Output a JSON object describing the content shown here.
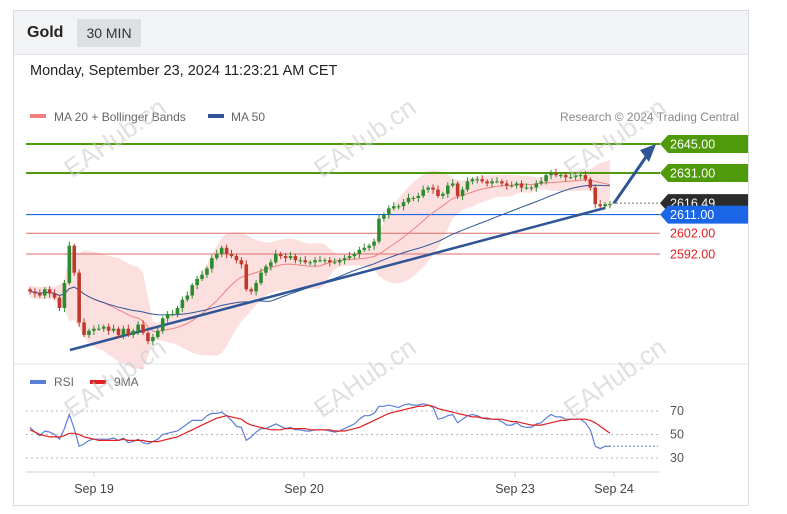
{
  "header": {
    "symbol": "Gold",
    "timeframe": "30 MIN"
  },
  "datetime": "Monday, September 23, 2024 11:23:21 AM CET",
  "legend_main": [
    {
      "label": "MA 20 + Bollinger Bands",
      "color": "#f08080"
    },
    {
      "label": "MA 50",
      "color": "#2f5597"
    }
  ],
  "credit": "Research © 2024 Trading Central",
  "legend_rsi": [
    {
      "label": "RSI",
      "color": "#5b7fd6"
    },
    {
      "label": "9MA",
      "color": "#e02020"
    }
  ],
  "watermark": "EAHub.cn",
  "colors": {
    "up": "#2e8b2e",
    "down": "#c0392b",
    "resistance": "#4f9a0a",
    "support_blue": "#1a66e6",
    "support_red": "#e06a6a",
    "trend": "#2f5597",
    "band": "#fbd5d5"
  },
  "chart_data": {
    "type": "candlestick",
    "price_levels": [
      {
        "value": 2645.0,
        "label": "2645.00",
        "kind": "resistance"
      },
      {
        "value": 2631.0,
        "label": "2631.00",
        "kind": "resistance"
      },
      {
        "value": 2616.49,
        "label": "2616.49",
        "kind": "last"
      },
      {
        "value": 2611.0,
        "label": "2611.00",
        "kind": "support_blue"
      },
      {
        "value": 2602.0,
        "label": "2602.00",
        "kind": "support_red"
      },
      {
        "value": 2592.0,
        "label": "2592.00",
        "kind": "support_red"
      }
    ],
    "x_labels": [
      "Sep 19",
      "Sep 20",
      "Sep 23",
      "Sep 24"
    ],
    "price_series": [
      2574,
      2573,
      2572,
      2575,
      2573,
      2571,
      2566,
      2578,
      2596,
      2583,
      2559,
      2553,
      2555,
      2556,
      2556,
      2557,
      2555,
      2556,
      2553,
      2556,
      2553,
      2555,
      2558,
      2554,
      2550,
      2552,
      2555,
      2561,
      2563,
      2563,
      2566,
      2570,
      2572,
      2577,
      2580,
      2582,
      2585,
      2590,
      2592,
      2595,
      2592,
      2591,
      2589,
      2587,
      2575,
      2574,
      2578,
      2583,
      2586,
      2588,
      2592,
      2591,
      2590,
      2591,
      2589,
      2589,
      2588,
      2588,
      2589,
      2589,
      2589,
      2588,
      2588,
      2589,
      2590,
      2591,
      2592,
      2594,
      2595,
      2596,
      2598,
      2609,
      2611,
      2614,
      2615,
      2615,
      2617,
      2619,
      2619,
      2620,
      2623,
      2624,
      2623,
      2620,
      2621,
      2625,
      2626,
      2620,
      2623,
      2627,
      2628,
      2628,
      2627,
      2626,
      2627,
      2627,
      2626,
      2625,
      2625,
      2626,
      2624,
      2624,
      2624,
      2626,
      2627,
      2630,
      2631,
      2630,
      2630,
      2629,
      2629,
      2630,
      2630,
      2628,
      2624,
      2616,
      2615,
      2616,
      2616
    ],
    "rsi_series": [
      56,
      52,
      49,
      53,
      52,
      50,
      46,
      55,
      67,
      55,
      40,
      42,
      45,
      46,
      46,
      46,
      46,
      47,
      45,
      47,
      43,
      44,
      46,
      43,
      42,
      44,
      46,
      50,
      51,
      52,
      53,
      56,
      59,
      62,
      62,
      62,
      66,
      68,
      68,
      69,
      66,
      62,
      57,
      56,
      45,
      48,
      52,
      55,
      55,
      57,
      59,
      57,
      55,
      56,
      54,
      54,
      53,
      53,
      54,
      54,
      54,
      53,
      52,
      53,
      55,
      57,
      59,
      63,
      66,
      66,
      68,
      74,
      74,
      75,
      74,
      73,
      75,
      76,
      75,
      75,
      76,
      75,
      73,
      63,
      64,
      66,
      67,
      60,
      63,
      66,
      67,
      66,
      64,
      63,
      63,
      63,
      61,
      58,
      58,
      60,
      57,
      56,
      56,
      59,
      60,
      64,
      67,
      65,
      65,
      63,
      63,
      63,
      63,
      60,
      54,
      40,
      38,
      40,
      40
    ],
    "rsi_ma_series": [
      54,
      52,
      50,
      49,
      48,
      48,
      48,
      49,
      51,
      51,
      50,
      48,
      47,
      46,
      45,
      45,
      45,
      45,
      45,
      46,
      45,
      45,
      45,
      45,
      44,
      44,
      44,
      45,
      46,
      47,
      48,
      50,
      52,
      54,
      56,
      58,
      60,
      62,
      64,
      65,
      66,
      65,
      64,
      63,
      60,
      58,
      57,
      56,
      55,
      54,
      54,
      54,
      55,
      55,
      55,
      55,
      55,
      54,
      54,
      54,
      54,
      54,
      53,
      53,
      53,
      54,
      55,
      56,
      58,
      60,
      62,
      64,
      66,
      68,
      69,
      70,
      71,
      72,
      73,
      74,
      74,
      75,
      74,
      72,
      71,
      70,
      69,
      68,
      67,
      66,
      65,
      65,
      64,
      64,
      63,
      63,
      63,
      62,
      61,
      61,
      60,
      59,
      58,
      58,
      58,
      59,
      60,
      61,
      62,
      62,
      63,
      63,
      63,
      63,
      62,
      60,
      57,
      54,
      51
    ],
    "rsi_levels": [
      70,
      50,
      30
    ]
  }
}
